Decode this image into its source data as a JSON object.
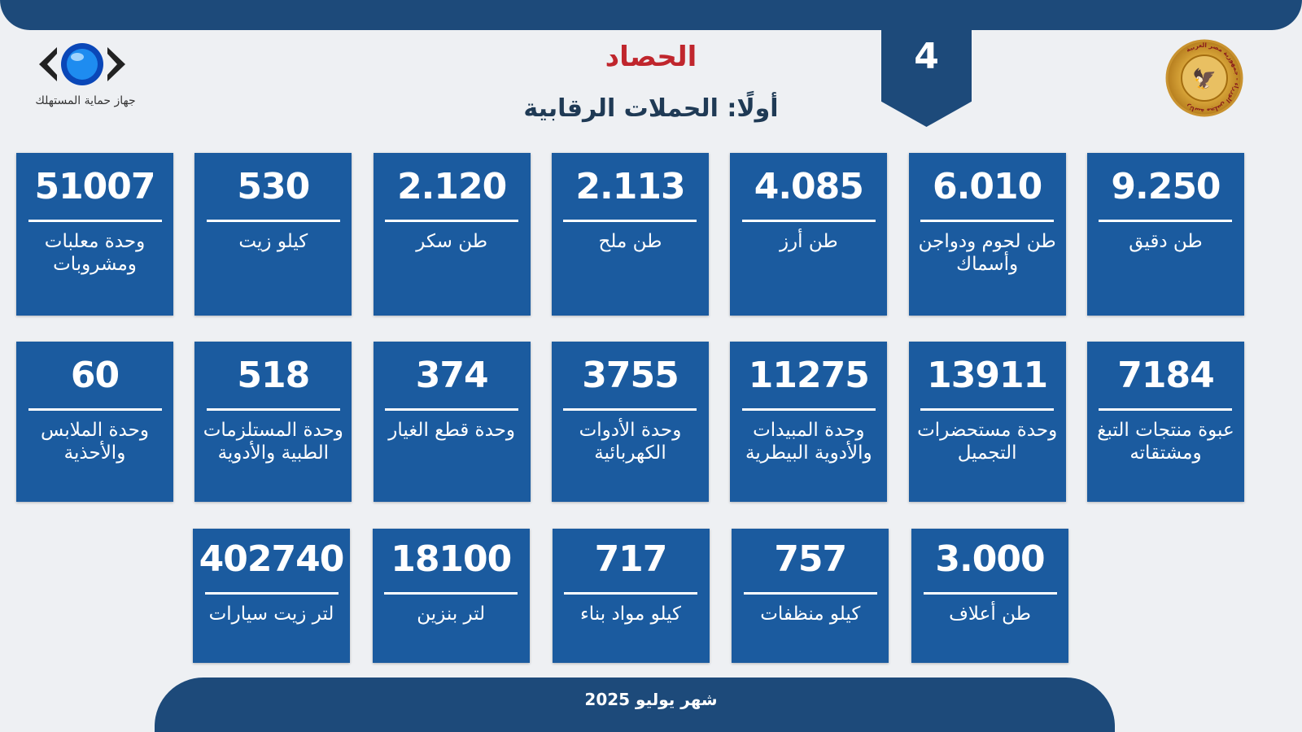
{
  "header": {
    "page_number": "4",
    "title": "الحصاد",
    "subtitle": "أولًا: الحملات الرقابية",
    "left_logo_text": "جهاز حماية المستهلك",
    "right_logo_text": "رئاسة مجلس الوزراء - جمهورية مصر العربية"
  },
  "colors": {
    "card": "#1b5b9f",
    "title": "#c0262d",
    "bar": "#1d4a7a"
  },
  "rows": [
    [
      {
        "value": "9.250",
        "label": "طن دقيق"
      },
      {
        "value": "6.010",
        "label": "طن لحوم ودواجن وأسماك"
      },
      {
        "value": "4.085",
        "label": "طن أرز"
      },
      {
        "value": "2.113",
        "label": "طن ملح"
      },
      {
        "value": "2.120",
        "label": "طن سكر"
      },
      {
        "value": "530",
        "label": "كيلو زيت"
      },
      {
        "value": "51007",
        "label": "وحدة معلبات ومشروبات"
      }
    ],
    [
      {
        "value": "7184",
        "label": "عبوة منتجات التبغ ومشتقاته"
      },
      {
        "value": "13911",
        "label": "وحدة مستحضرات التجميل"
      },
      {
        "value": "11275",
        "label": "وحدة المبيدات والأدوية البيطرية"
      },
      {
        "value": "3755",
        "label": "وحدة الأدوات الكهربائية"
      },
      {
        "value": "374",
        "label": "وحدة قطع الغيار"
      },
      {
        "value": "518",
        "label": "وحدة المستلزمات الطبية والأدوية"
      },
      {
        "value": "60",
        "label": "وحدة الملابس والأحذية"
      }
    ],
    [
      {
        "value": "3.000",
        "label": "طن أعلاف"
      },
      {
        "value": "757",
        "label": "كيلو منظفات"
      },
      {
        "value": "717",
        "label": "كيلو مواد بناء"
      },
      {
        "value": "18100",
        "label": "لتر بنزين"
      },
      {
        "value": "402740",
        "label": "لتر زيت سيارات"
      }
    ]
  ],
  "footer": {
    "period": "شهر يوليو 2025"
  }
}
